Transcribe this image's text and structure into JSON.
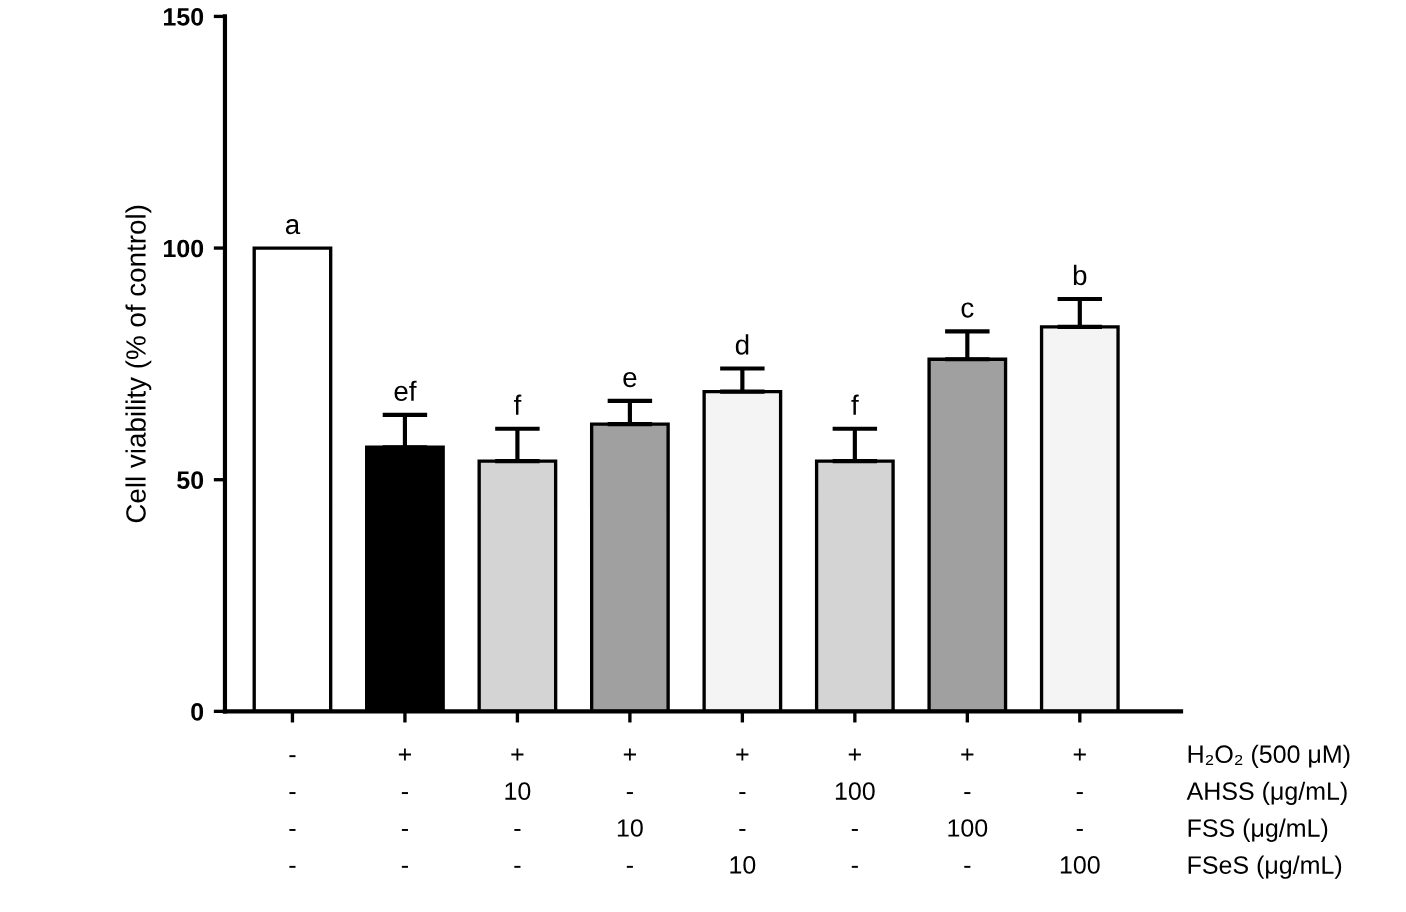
{
  "chart_data": {
    "type": "bar",
    "ylabel": "Cell viability (% of control)",
    "categories": [
      "-\n-\n-\n-",
      "+\n-\n-\n-",
      "+\n10\n-\n-",
      "+\n-\n10\n-",
      "+\n-\n-\n10",
      "+\n100\n-\n-",
      "+\n-\n100\n-",
      "+\n-\n-\n100"
    ],
    "values": [
      100,
      57,
      54,
      62,
      69,
      54,
      76,
      83
    ],
    "errors": [
      null,
      7,
      7,
      5,
      5,
      7,
      6,
      6
    ],
    "colors": [
      "#ffffff",
      "#000000",
      "#d4d4d4",
      "#a0a0a0",
      "#f4f4f4",
      "#d4d4d4",
      "#a0a0a0",
      "#f4f4f4"
    ],
    "value_labels": [
      "a",
      "ef",
      "f",
      "e",
      "d",
      "f",
      "c",
      "b"
    ],
    "annotations": [
      "H₂O₂ (500 μM)",
      "AHSS (μg/mL)",
      "FSS (μg/mL)",
      "FSeS (μg/mL)"
    ],
    "ylim": [
      0,
      150
    ],
    "yticks": [
      0,
      50,
      100,
      150
    ],
    "grid": false,
    "legend": false
  }
}
